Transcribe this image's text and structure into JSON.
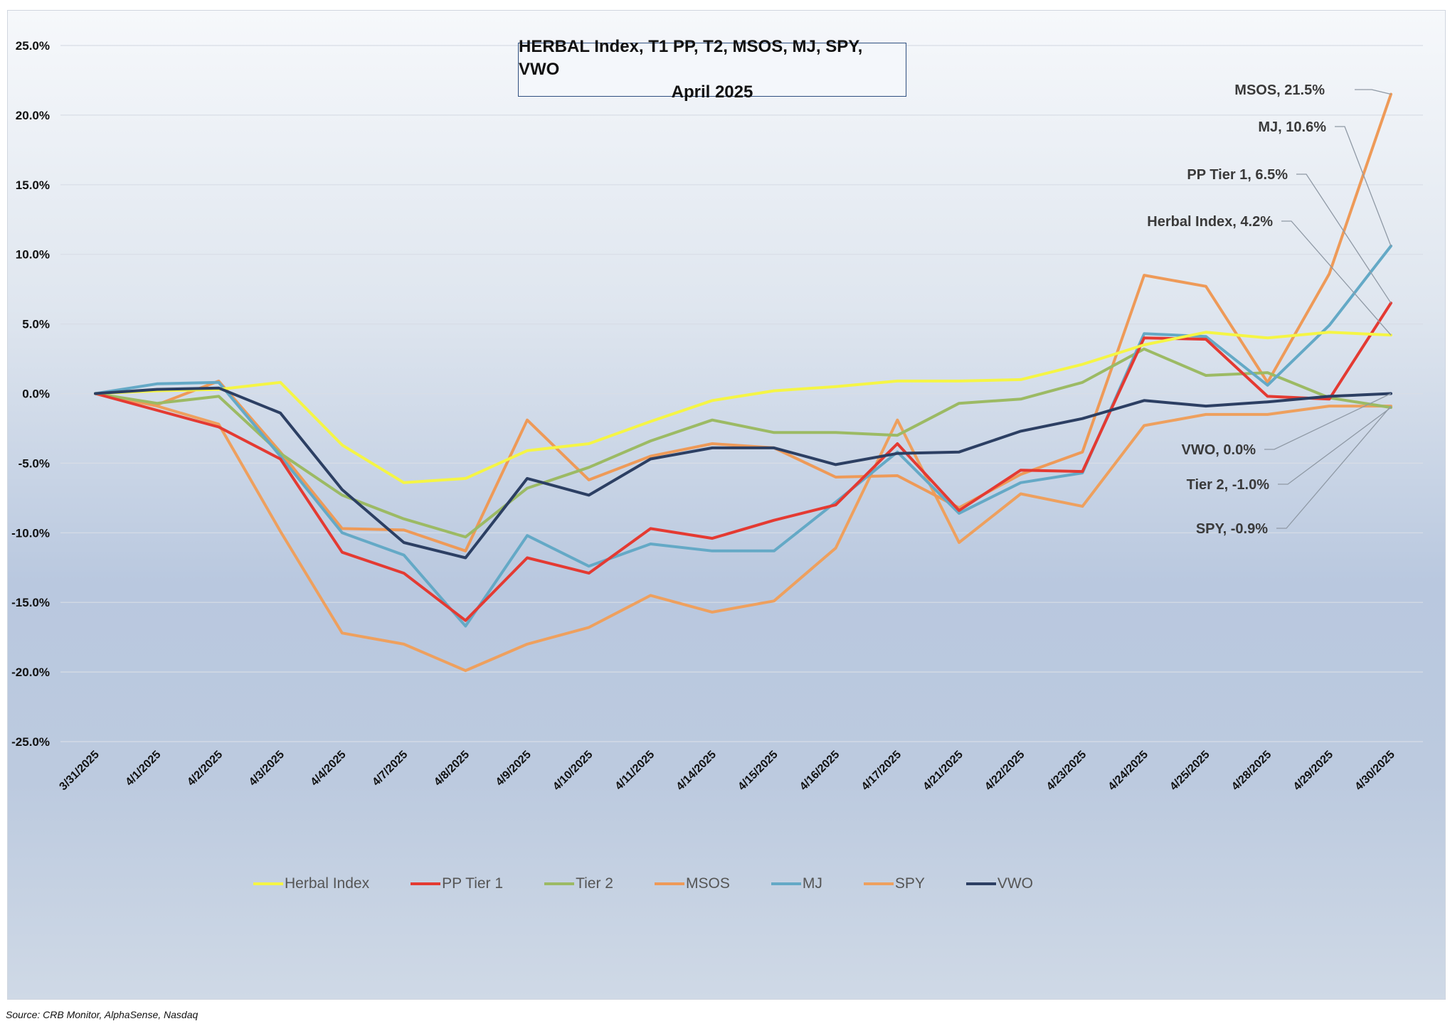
{
  "source_note": "Source: CRB Monitor, AlphaSense, Nasdaq",
  "chart_data": {
    "type": "line",
    "title": "HERBAL Index, T1 PP, T2, MSOS, MJ, SPY, VWO",
    "subtitle": "April 2025",
    "xlabel": "",
    "ylabel": "",
    "ylim": [
      -25,
      25
    ],
    "yticks": [
      25,
      20,
      15,
      10,
      5,
      0,
      -5,
      -10,
      -15,
      -20,
      -25
    ],
    "ytick_labels": [
      "25.0%",
      "20.0%",
      "15.0%",
      "10.0%",
      "5.0%",
      "0.0%",
      "-5.0%",
      "-10.0%",
      "-15.0%",
      "-20.0%",
      "-25.0%"
    ],
    "grid": true,
    "legend_position": "bottom",
    "categories": [
      "3/31/2025",
      "4/1/2025",
      "4/2/2025",
      "4/3/2025",
      "4/4/2025",
      "4/7/2025",
      "4/8/2025",
      "4/9/2025",
      "4/10/2025",
      "4/11/2025",
      "4/14/2025",
      "4/15/2025",
      "4/16/2025",
      "4/17/2025",
      "4/21/2025",
      "4/22/2025",
      "4/23/2025",
      "4/24/2025",
      "4/25/2025",
      "4/28/2025",
      "4/29/2025",
      "4/30/2025"
    ],
    "series": [
      {
        "name": "SPY",
        "color": "#eea05e",
        "values": [
          0,
          -0.9,
          -2.2,
          -9.9,
          -17.2,
          -18.0,
          -19.9,
          -18.0,
          -16.8,
          -14.5,
          -15.7,
          -14.9,
          -11.1,
          -1.9,
          -10.7,
          -7.2,
          -8.1,
          -2.3,
          -1.5,
          -1.5,
          -0.9,
          -0.9
        ]
      },
      {
        "name": "MSOS",
        "color": "#ee9a58",
        "values": [
          0,
          -0.8,
          0.9,
          -4.2,
          -9.7,
          -9.8,
          -11.3,
          -1.9,
          -6.2,
          -4.5,
          -3.6,
          -3.9,
          -6.0,
          -5.9,
          -8.2,
          -5.8,
          -4.2,
          8.5,
          7.7,
          0.8,
          8.6,
          21.5
        ]
      },
      {
        "name": "Tier 2",
        "color": "#9cba64",
        "values": [
          0,
          -0.7,
          -0.2,
          -4.3,
          -7.3,
          -9.0,
          -10.3,
          -6.8,
          -5.3,
          -3.4,
          -1.9,
          -2.8,
          -2.8,
          -3.0,
          -0.7,
          -0.4,
          0.8,
          3.2,
          1.3,
          1.5,
          -0.3,
          -1.0
        ]
      },
      {
        "name": "MJ",
        "color": "#64a9c6",
        "values": [
          0,
          0.7,
          0.8,
          -4.5,
          -10.0,
          -11.6,
          -16.7,
          -10.2,
          -12.4,
          -10.8,
          -11.3,
          -11.3,
          -7.8,
          -4.2,
          -8.6,
          -6.4,
          -5.7,
          4.3,
          4.1,
          0.6,
          4.9,
          10.6
        ]
      },
      {
        "name": "PP Tier 1",
        "color": "#e43a32",
        "values": [
          0,
          -1.2,
          -2.4,
          -4.7,
          -11.4,
          -12.9,
          -16.3,
          -11.8,
          -12.9,
          -9.7,
          -10.4,
          -9.1,
          -8.0,
          -3.6,
          -8.4,
          -5.5,
          -5.6,
          4.0,
          3.9,
          -0.2,
          -0.4,
          6.5
        ]
      },
      {
        "name": "Herbal Index",
        "color": "#f5f545",
        "values": [
          0,
          0.2,
          0.3,
          0.8,
          -3.7,
          -6.4,
          -6.1,
          -4.1,
          -3.6,
          -2.0,
          -0.5,
          0.2,
          0.5,
          0.9,
          0.9,
          1.0,
          2.1,
          3.5,
          4.4,
          4.0,
          4.4,
          4.2
        ]
      },
      {
        "name": "VWO",
        "color": "#2c3f63",
        "values": [
          0,
          0.3,
          0.4,
          -1.4,
          -6.9,
          -10.7,
          -11.8,
          -6.1,
          -7.3,
          -4.7,
          -3.9,
          -3.9,
          -5.1,
          -4.3,
          -4.2,
          -2.7,
          -1.8,
          -0.5,
          -0.9,
          -0.6,
          -0.2,
          0.0
        ]
      }
    ],
    "legend_order": [
      "Herbal Index",
      "PP Tier 1",
      "Tier 2",
      "MSOS",
      "MJ",
      "SPY",
      "VWO"
    ],
    "annotations": [
      {
        "series": "MSOS",
        "text": "MSOS, 21.5%"
      },
      {
        "series": "MJ",
        "text": "MJ, 10.6%"
      },
      {
        "series": "PP Tier 1",
        "text": "PP Tier 1, 6.5%"
      },
      {
        "series": "Herbal Index",
        "text": "Herbal Index, 4.2%"
      },
      {
        "series": "VWO",
        "text": "VWO, 0.0%"
      },
      {
        "series": "Tier 2",
        "text": "Tier 2, -1.0%"
      },
      {
        "series": "SPY",
        "text": "SPY, -0.9%"
      }
    ]
  }
}
